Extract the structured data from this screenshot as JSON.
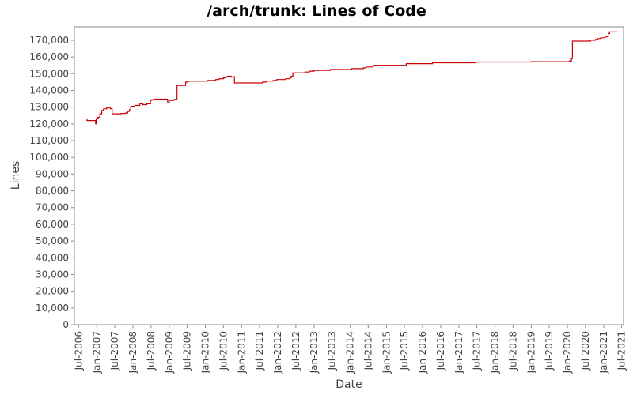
{
  "chart_data": {
    "type": "line",
    "title": "/arch/trunk: Lines of Code",
    "xlabel": "Date",
    "ylabel": "Lines",
    "ylim": [
      0,
      178000
    ],
    "xlim": [
      "2006-05-20",
      "2021-07-20"
    ],
    "grid": false,
    "legend": "none",
    "line_color": "#cc0000",
    "y_ticks": [
      0,
      10000,
      20000,
      30000,
      40000,
      50000,
      60000,
      70000,
      80000,
      90000,
      100000,
      110000,
      120000,
      130000,
      140000,
      150000,
      160000,
      170000
    ],
    "y_tick_labels": [
      "0",
      "10,000",
      "20,000",
      "30,000",
      "40,000",
      "50,000",
      "60,000",
      "70,000",
      "80,000",
      "90,000",
      "100,000",
      "110,000",
      "120,000",
      "130,000",
      "140,000",
      "150,000",
      "160,000",
      "170,000"
    ],
    "x_ticks": [
      "2006-07-01",
      "2007-01-01",
      "2007-07-01",
      "2008-01-01",
      "2008-07-01",
      "2009-01-01",
      "2009-07-01",
      "2010-01-01",
      "2010-07-01",
      "2011-01-01",
      "2011-07-01",
      "2012-01-01",
      "2012-07-01",
      "2013-01-01",
      "2013-07-01",
      "2014-01-01",
      "2014-07-01",
      "2015-01-01",
      "2015-07-01",
      "2016-01-01",
      "2016-07-01",
      "2017-01-01",
      "2017-07-01",
      "2018-01-01",
      "2018-07-01",
      "2019-01-01",
      "2019-07-01",
      "2020-01-01",
      "2020-07-01",
      "2021-01-01",
      "2021-07-01"
    ],
    "x_tick_labels": [
      "Jul-2006",
      "Jan-2007",
      "Jul-2007",
      "Jan-2008",
      "Jul-2008",
      "Jan-2009",
      "Jul-2009",
      "Jan-2010",
      "Jul-2010",
      "Jan-2011",
      "Jul-2011",
      "Jan-2012",
      "Jul-2012",
      "Jan-2013",
      "Jul-2013",
      "Jan-2014",
      "Jul-2014",
      "Jan-2015",
      "Jul-2015",
      "Jan-2016",
      "Jul-2016",
      "Jan-2017",
      "Jul-2017",
      "Jan-2018",
      "Jul-2018",
      "Jan-2019",
      "Jul-2019",
      "Jan-2020",
      "Jul-2020",
      "Jan-2021",
      "Jul-2021"
    ],
    "series": [
      {
        "step": true,
        "x": [
          "2006-09-15",
          "2006-09-25",
          "2006-12-20",
          "2006-12-25",
          "2007-01-01",
          "2007-01-15",
          "2007-02-01",
          "2007-02-20",
          "2007-03-10",
          "2007-04-10",
          "2007-05-20",
          "2007-06-05",
          "2007-09-01",
          "2007-10-15",
          "2007-11-10",
          "2007-11-25",
          "2007-12-10",
          "2008-01-20",
          "2008-03-10",
          "2008-04-10",
          "2008-05-20",
          "2008-06-25",
          "2008-07-10",
          "2008-08-10",
          "2008-12-15",
          "2009-01-01",
          "2009-02-15",
          "2009-03-01",
          "2009-03-20",
          "2009-06-15",
          "2009-07-10",
          "2010-01-20",
          "2010-04-15",
          "2010-05-20",
          "2010-07-01",
          "2010-07-20",
          "2010-08-10",
          "2010-09-20",
          "2010-10-05",
          "2010-10-20",
          "2011-07-01",
          "2011-08-01",
          "2011-09-15",
          "2011-11-15",
          "2011-12-20",
          "2012-03-20",
          "2012-05-01",
          "2012-05-15",
          "2012-06-01",
          "2012-10-01",
          "2012-11-15",
          "2013-01-01",
          "2013-06-15",
          "2014-01-15",
          "2014-05-15",
          "2014-06-10",
          "2014-08-20",
          "2015-07-20",
          "2016-04-10",
          "2017-06-20",
          "2019-01-01",
          "2020-01-20",
          "2020-02-10",
          "2020-02-20",
          "2020-08-20",
          "2020-10-10",
          "2020-11-01",
          "2020-12-01",
          "2021-01-15",
          "2021-02-15",
          "2021-03-01",
          "2021-05-20"
        ],
        "y": [
          123000,
          122000,
          120000,
          122500,
          123500,
          124000,
          126000,
          128000,
          129000,
          129500,
          129000,
          126000,
          126200,
          126500,
          127500,
          128500,
          130500,
          131000,
          132000,
          131500,
          132000,
          134000,
          134500,
          134800,
          133000,
          134000,
          134500,
          134700,
          143000,
          145000,
          145500,
          146000,
          146500,
          147000,
          147500,
          148000,
          148500,
          148000,
          148200,
          144500,
          144500,
          145000,
          145500,
          146000,
          146500,
          147000,
          147500,
          148500,
          150500,
          151000,
          151500,
          152000,
          152500,
          153000,
          153500,
          154000,
          155000,
          156000,
          156500,
          157000,
          157200,
          157500,
          159000,
          169500,
          170000,
          170500,
          171000,
          171500,
          172000,
          174000,
          175000,
          175000
        ]
      }
    ]
  }
}
